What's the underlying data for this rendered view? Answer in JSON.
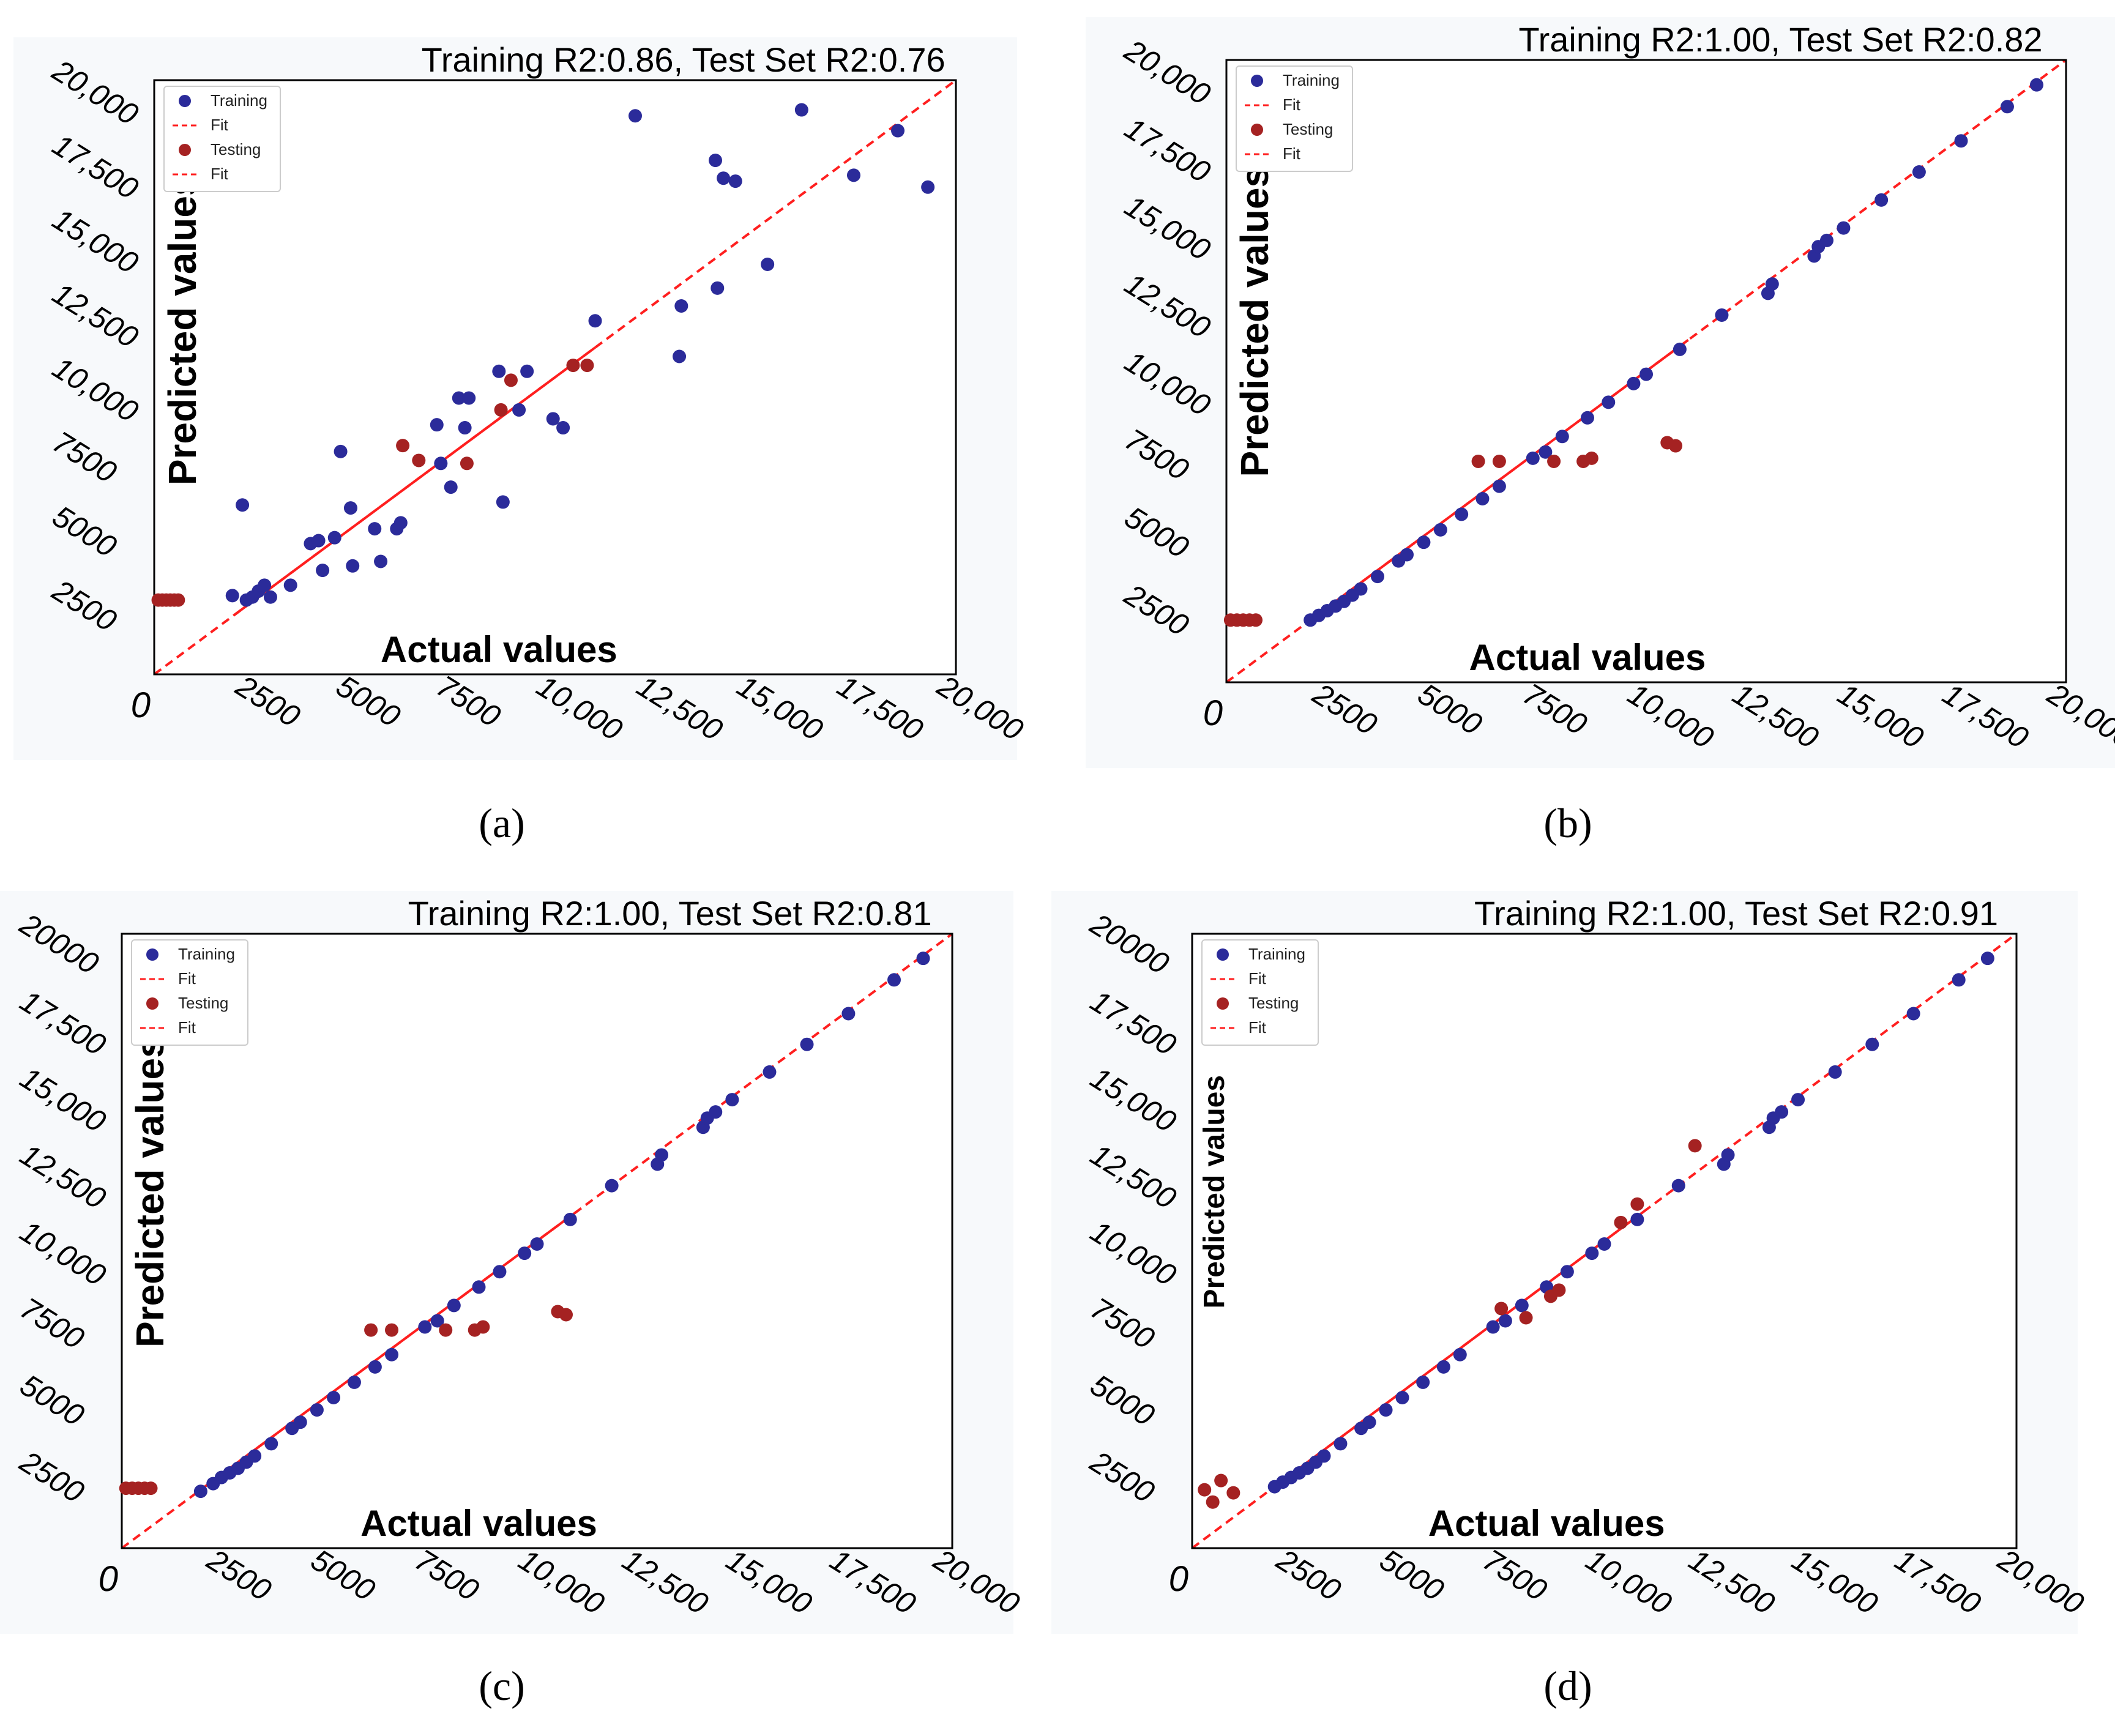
{
  "colors": {
    "training": "#2b2b9a",
    "testing": "#a52222",
    "fit": "#ff1f1f",
    "axis": "#000000"
  },
  "chart_data": [
    {
      "type": "scatter",
      "panel": "(a)",
      "title": "Training R2:0.86, Test Set R2:0.76",
      "xlabel": "Actual values",
      "ylabel": "Predicted values",
      "xlim": [
        0,
        20000
      ],
      "ylim": [
        0,
        20000
      ],
      "xticks": [
        "0",
        "2500",
        "5000",
        "7500",
        "10,000",
        "12,500",
        "15,000",
        "17,500",
        "20,000"
      ],
      "yticks": [
        "0",
        "2500",
        "5000",
        "7500",
        "10,000",
        "12,500",
        "15,000",
        "17,500",
        "20,000"
      ],
      "legend_position": "top-left",
      "legend": [
        "Training",
        "Fit",
        "Testing",
        "Fit"
      ],
      "series": [
        {
          "name": "Training",
          "points": [
            [
              1950,
              2650
            ],
            [
              2200,
              5700
            ],
            [
              2300,
              2500
            ],
            [
              2450,
              2600
            ],
            [
              2600,
              2800
            ],
            [
              2750,
              3000
            ],
            [
              2900,
              2600
            ],
            [
              3400,
              3000
            ],
            [
              3900,
              4400
            ],
            [
              4100,
              4500
            ],
            [
              4200,
              3500
            ],
            [
              4500,
              4600
            ],
            [
              4650,
              7500
            ],
            [
              4900,
              5600
            ],
            [
              4950,
              3650
            ],
            [
              5500,
              4900
            ],
            [
              5650,
              3800
            ],
            [
              6050,
              4900
            ],
            [
              6150,
              5100
            ],
            [
              7050,
              8400
            ],
            [
              7150,
              7100
            ],
            [
              7400,
              6300
            ],
            [
              7600,
              9300
            ],
            [
              7750,
              8300
            ],
            [
              7850,
              9300
            ],
            [
              8600,
              10200
            ],
            [
              8700,
              5800
            ],
            [
              9100,
              8900
            ],
            [
              9300,
              10200
            ],
            [
              9950,
              8600
            ],
            [
              10200,
              8300
            ],
            [
              11000,
              11900
            ],
            [
              12000,
              18800
            ],
            [
              13100,
              10700
            ],
            [
              13150,
              12400
            ],
            [
              14000,
              17300
            ],
            [
              14050,
              13000
            ],
            [
              14200,
              16700
            ],
            [
              14500,
              16600
            ],
            [
              15300,
              13800
            ],
            [
              16150,
              19000
            ],
            [
              17450,
              16800
            ],
            [
              18550,
              18300
            ],
            [
              19300,
              16400
            ]
          ]
        },
        {
          "name": "Testing",
          "points": [
            [
              100,
              2500
            ],
            [
              200,
              2500
            ],
            [
              300,
              2500
            ],
            [
              400,
              2500
            ],
            [
              500,
              2500
            ],
            [
              600,
              2500
            ],
            [
              6200,
              7700
            ],
            [
              6600,
              7200
            ],
            [
              7800,
              7100
            ],
            [
              8650,
              8900
            ],
            [
              8900,
              9900
            ],
            [
              10450,
              10400
            ],
            [
              10800,
              10400
            ]
          ]
        }
      ]
    },
    {
      "type": "scatter",
      "panel": "(b)",
      "title": "Training R2:1.00, Test Set R2:0.82",
      "xlabel": "Actual values",
      "ylabel": "Predicted values",
      "xlim": [
        0,
        20000
      ],
      "ylim": [
        0,
        20000
      ],
      "xticks": [
        "0",
        "2500",
        "5000",
        "7500",
        "10,000",
        "12,500",
        "15,000",
        "17,500",
        "20,000"
      ],
      "yticks": [
        "2500",
        "5000",
        "7500",
        "10,000",
        "12,500",
        "15,000",
        "17,500",
        "20,000"
      ],
      "legend_position": "top-left",
      "legend": [
        "Training",
        "Fit",
        "Testing",
        "Fit"
      ],
      "series": [
        {
          "name": "Training",
          "points": [
            [
              2000,
              2000
            ],
            [
              2200,
              2150
            ],
            [
              2400,
              2300
            ],
            [
              2600,
              2450
            ],
            [
              2800,
              2600
            ],
            [
              3000,
              2800
            ],
            [
              3200,
              3000
            ],
            [
              3600,
              3400
            ],
            [
              4100,
              3900
            ],
            [
              4300,
              4100
            ],
            [
              4700,
              4500
            ],
            [
              5100,
              4900
            ],
            [
              5600,
              5400
            ],
            [
              6100,
              5900
            ],
            [
              6500,
              6300
            ],
            [
              7300,
              7200
            ],
            [
              7600,
              7400
            ],
            [
              8000,
              7900
            ],
            [
              8600,
              8500
            ],
            [
              9100,
              9000
            ],
            [
              9700,
              9600
            ],
            [
              10000,
              9900
            ],
            [
              10800,
              10700
            ],
            [
              11800,
              11800
            ],
            [
              12900,
              12500
            ],
            [
              13000,
              12800
            ],
            [
              14000,
              13700
            ],
            [
              14100,
              14000
            ],
            [
              14300,
              14200
            ],
            [
              14700,
              14600
            ],
            [
              15600,
              15500
            ],
            [
              16500,
              16400
            ],
            [
              17500,
              17400
            ],
            [
              18600,
              18500
            ],
            [
              19300,
              19200
            ]
          ]
        },
        {
          "name": "Testing",
          "points": [
            [
              100,
              2000
            ],
            [
              250,
              2000
            ],
            [
              400,
              2000
            ],
            [
              550,
              2000
            ],
            [
              700,
              2000
            ],
            [
              6000,
              7100
            ],
            [
              6500,
              7100
            ],
            [
              7800,
              7100
            ],
            [
              8500,
              7100
            ],
            [
              8700,
              7200
            ],
            [
              10500,
              7700
            ],
            [
              10700,
              7600
            ]
          ]
        }
      ]
    },
    {
      "type": "scatter",
      "panel": "(c)",
      "title": "Training R2:1.00, Test Set R2:0.81",
      "xlabel": "Actual values",
      "ylabel": "Predicted values",
      "xlim": [
        0,
        20000
      ],
      "ylim": [
        0,
        20000
      ],
      "xticks": [
        "0",
        "2500",
        "5000",
        "7500",
        "10,000",
        "12,500",
        "15,000",
        "17,500",
        "20,000"
      ],
      "yticks": [
        "2500",
        "5000",
        "7500",
        "10,000",
        "12,500",
        "15,000",
        "17,500",
        "20000"
      ],
      "legend_position": "top-left",
      "legend": [
        "Training",
        "Fit",
        "Testing",
        "Fit"
      ],
      "series": [
        {
          "name": "Training",
          "points": [
            [
              1900,
              1850
            ],
            [
              2200,
              2100
            ],
            [
              2400,
              2300
            ],
            [
              2600,
              2450
            ],
            [
              2800,
              2600
            ],
            [
              3000,
              2800
            ],
            [
              3200,
              3000
            ],
            [
              3600,
              3400
            ],
            [
              4100,
              3900
            ],
            [
              4300,
              4100
            ],
            [
              4700,
              4500
            ],
            [
              5100,
              4900
            ],
            [
              5600,
              5400
            ],
            [
              6100,
              5900
            ],
            [
              6500,
              6300
            ],
            [
              7300,
              7200
            ],
            [
              7600,
              7400
            ],
            [
              8000,
              7900
            ],
            [
              8600,
              8500
            ],
            [
              9100,
              9000
            ],
            [
              9700,
              9600
            ],
            [
              10000,
              9900
            ],
            [
              10800,
              10700
            ],
            [
              11800,
              11800
            ],
            [
              12900,
              12500
            ],
            [
              13000,
              12800
            ],
            [
              14000,
              13700
            ],
            [
              14100,
              14000
            ],
            [
              14300,
              14200
            ],
            [
              14700,
              14600
            ],
            [
              15600,
              15500
            ],
            [
              16500,
              16400
            ],
            [
              17500,
              17400
            ],
            [
              18600,
              18500
            ],
            [
              19300,
              19200
            ]
          ]
        },
        {
          "name": "Testing",
          "points": [
            [
              100,
              1950
            ],
            [
              250,
              1950
            ],
            [
              400,
              1950
            ],
            [
              550,
              1950
            ],
            [
              700,
              1950
            ],
            [
              6000,
              7100
            ],
            [
              6500,
              7100
            ],
            [
              7800,
              7100
            ],
            [
              8500,
              7100
            ],
            [
              8700,
              7200
            ],
            [
              10500,
              7700
            ],
            [
              10700,
              7600
            ]
          ]
        }
      ]
    },
    {
      "type": "scatter",
      "panel": "(d)",
      "title": "Training R2:1.00, Test Set R2:0.91",
      "xlabel": "Actual values",
      "ylabel": "Predicted values",
      "xlim": [
        0,
        20000
      ],
      "ylim": [
        0,
        20000
      ],
      "xticks": [
        "0",
        "2500",
        "5000",
        "7500",
        "10,000",
        "12,500",
        "15,000",
        "17,500",
        "20,000"
      ],
      "yticks": [
        "2500",
        "5000",
        "7500",
        "10,000",
        "12,500",
        "15,000",
        "17,500",
        "20000"
      ],
      "legend_position": "top-left",
      "legend": [
        "Training",
        "Fit",
        "Testing",
        "Fit"
      ],
      "series": [
        {
          "name": "Training",
          "points": [
            [
              2000,
              2000
            ],
            [
              2200,
              2150
            ],
            [
              2400,
              2300
            ],
            [
              2600,
              2450
            ],
            [
              2800,
              2600
            ],
            [
              3000,
              2800
            ],
            [
              3200,
              3000
            ],
            [
              3600,
              3400
            ],
            [
              4100,
              3900
            ],
            [
              4300,
              4100
            ],
            [
              4700,
              4500
            ],
            [
              5100,
              4900
            ],
            [
              5600,
              5400
            ],
            [
              6100,
              5900
            ],
            [
              6500,
              6300
            ],
            [
              7300,
              7200
            ],
            [
              7600,
              7400
            ],
            [
              8000,
              7900
            ],
            [
              8600,
              8500
            ],
            [
              9100,
              9000
            ],
            [
              9700,
              9600
            ],
            [
              10000,
              9900
            ],
            [
              10800,
              10700
            ],
            [
              11800,
              11800
            ],
            [
              12900,
              12500
            ],
            [
              13000,
              12800
            ],
            [
              14000,
              13700
            ],
            [
              14100,
              14000
            ],
            [
              14300,
              14200
            ],
            [
              14700,
              14600
            ],
            [
              15600,
              15500
            ],
            [
              16500,
              16400
            ],
            [
              17500,
              17400
            ],
            [
              18600,
              18500
            ],
            [
              19300,
              19200
            ]
          ]
        },
        {
          "name": "Testing",
          "points": [
            [
              300,
              1900
            ],
            [
              500,
              1500
            ],
            [
              700,
              2200
            ],
            [
              1000,
              1800
            ],
            [
              7500,
              7800
            ],
            [
              8100,
              7500
            ],
            [
              8700,
              8200
            ],
            [
              8900,
              8400
            ],
            [
              10400,
              10600
            ],
            [
              10800,
              11200
            ],
            [
              12200,
              13100
            ]
          ]
        }
      ]
    }
  ]
}
